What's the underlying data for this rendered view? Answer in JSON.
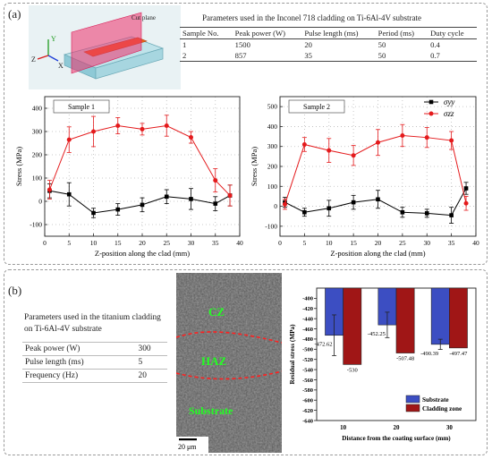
{
  "panel_a": {
    "label": "(a)",
    "cut_plane_label": "Cut plane",
    "axes3d": {
      "y": "Y",
      "z": "Z",
      "x": "X"
    },
    "params_title": "Parameters used in the Inconel 718 cladding on Ti-6Al-4V substrate",
    "params_headers": [
      "Sample No.",
      "Peak power (W)",
      "Pulse length (ms)",
      "Period (ms)",
      "Duty cycle"
    ],
    "params_rows": [
      [
        "1",
        "1500",
        "20",
        "50",
        "0.4"
      ],
      [
        "2",
        "857",
        "35",
        "50",
        "0.7"
      ]
    ]
  },
  "panel_b": {
    "label": "(b)",
    "params_title": "Parameters used in the titanium cladding on Ti-6Al-4V substrate",
    "params_rows": [
      [
        "Peak power (W)",
        "300"
      ],
      [
        "Pulse length (ms)",
        "5"
      ],
      [
        "Frequency (Hz)",
        "20"
      ]
    ],
    "micro_labels": {
      "cz": "CZ",
      "haz": "HAZ",
      "substrate": "Substrate",
      "scale": "20 μm"
    }
  },
  "chart_data": [
    {
      "type": "line",
      "box_label": "Sample 1",
      "xlabel": "Z-position along the clad (mm)",
      "ylabel": "Stress (MPa)",
      "xlim": [
        0,
        40
      ],
      "ylim": [
        -150,
        450
      ],
      "xticks": [
        0,
        5,
        10,
        15,
        20,
        25,
        30,
        35,
        40
      ],
      "yticks": [
        -100,
        0,
        100,
        200,
        300,
        400
      ],
      "x": [
        1,
        5,
        10,
        15,
        20,
        25,
        30,
        35,
        38
      ],
      "series": [
        {
          "name": "σyy",
          "color": "#000000",
          "marker": "square",
          "values": [
            45,
            30,
            -50,
            -35,
            -15,
            20,
            10,
            -10,
            25
          ],
          "errors": [
            30,
            50,
            20,
            25,
            30,
            30,
            45,
            30,
            45
          ]
        },
        {
          "name": "σzz",
          "color": "#e41a1c",
          "marker": "circle",
          "values": [
            50,
            265,
            300,
            325,
            310,
            325,
            275,
            90,
            25
          ],
          "errors": [
            40,
            55,
            65,
            35,
            25,
            45,
            25,
            50,
            45
          ]
        }
      ]
    },
    {
      "type": "line",
      "box_label": "Sample 2",
      "xlabel": "Z-position along the clad (mm)",
      "ylabel": "Stress (MPa)",
      "xlim": [
        0,
        40
      ],
      "ylim": [
        -150,
        550
      ],
      "xticks": [
        0,
        5,
        10,
        15,
        20,
        25,
        30,
        35,
        40
      ],
      "yticks": [
        -100,
        0,
        100,
        200,
        300,
        400,
        500
      ],
      "x": [
        1,
        5,
        10,
        15,
        20,
        25,
        30,
        35,
        38
      ],
      "legend_position": "top-right",
      "series": [
        {
          "name": "σyy",
          "color": "#000000",
          "marker": "square",
          "values": [
            20,
            -30,
            -10,
            20,
            35,
            -30,
            -35,
            -45,
            90
          ],
          "errors": [
            25,
            20,
            40,
            35,
            45,
            25,
            20,
            40,
            30
          ]
        },
        {
          "name": "σzz",
          "color": "#e41a1c",
          "marker": "circle",
          "values": [
            10,
            310,
            280,
            255,
            320,
            355,
            345,
            330,
            15
          ],
          "errors": [
            25,
            35,
            60,
            50,
            65,
            55,
            50,
            45,
            35
          ]
        }
      ]
    },
    {
      "type": "bar",
      "xlabel": "Distance from the coating surface (mm)",
      "ylabel": "Residual stress (MPa)",
      "ylim": [
        -640,
        -380
      ],
      "yticks": [
        -400,
        -420,
        -440,
        -460,
        -480,
        -500,
        -520,
        -540,
        -560,
        -580,
        -600,
        -620,
        -640
      ],
      "categories": [
        "10",
        "20",
        "30"
      ],
      "legend_position": "bottom-right",
      "series": [
        {
          "name": "Substrate",
          "color": "#3c4ec2",
          "values": [
            -472.62,
            -452.25,
            -490.39
          ],
          "errors": [
            40,
            25,
            10
          ]
        },
        {
          "name": "Cladding zone",
          "color": "#a01616",
          "values": [
            -530,
            -507.48,
            -497.47
          ],
          "errors": [
            0,
            0,
            0
          ]
        }
      ]
    }
  ]
}
